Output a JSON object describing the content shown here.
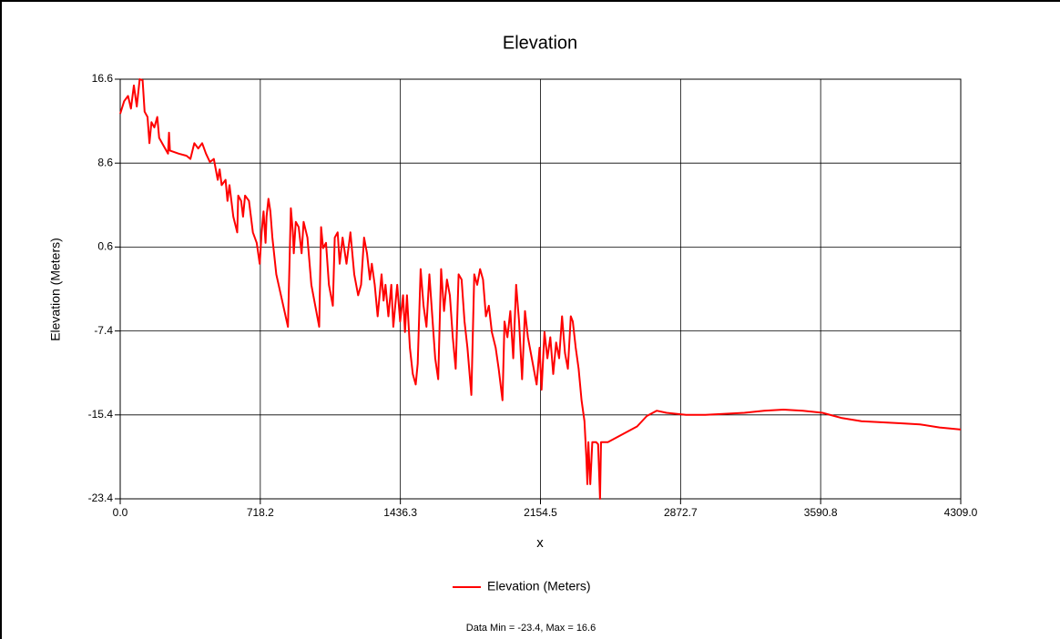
{
  "chart_data": {
    "type": "line",
    "title": "Elevation",
    "x_label": "x",
    "y_label": "Elevation (Meters)",
    "note": "Data Min = -23.4, Max = 16.6",
    "xlim": [
      0,
      4309
    ],
    "ylim": [
      -23.4,
      16.6
    ],
    "xticks": [
      {
        "value": 0,
        "label": "0.0"
      },
      718.2,
      1436.3,
      2154.5,
      2872.7,
      3590.8,
      {
        "value": 4309,
        "label": "4309.0"
      }
    ],
    "yticks": [
      16.6,
      8.6,
      0.6,
      -7.4,
      -15.4,
      -23.4
    ],
    "grid": true,
    "legend": "bottom",
    "x": [
      0,
      20,
      40,
      55,
      70,
      85,
      100,
      115,
      125,
      140,
      150,
      160,
      175,
      190,
      200,
      230,
      245,
      250,
      255,
      300,
      340,
      360,
      380,
      400,
      420,
      440,
      460,
      480,
      500,
      510,
      520,
      540,
      550,
      560,
      580,
      600,
      605,
      620,
      630,
      640,
      660,
      680,
      700,
      715,
      725,
      735,
      745,
      750,
      760,
      770,
      780,
      800,
      830,
      860,
      875,
      885,
      890,
      900,
      915,
      930,
      940,
      960,
      980,
      1000,
      1020,
      1030,
      1040,
      1055,
      1070,
      1090,
      1100,
      1115,
      1125,
      1140,
      1160,
      1180,
      1200,
      1220,
      1235,
      1250,
      1265,
      1280,
      1290,
      1305,
      1320,
      1340,
      1350,
      1360,
      1375,
      1390,
      1400,
      1410,
      1420,
      1435,
      1450,
      1460,
      1470,
      1485,
      1500,
      1515,
      1525,
      1540,
      1555,
      1570,
      1585,
      1600,
      1615,
      1630,
      1645,
      1660,
      1675,
      1690,
      1705,
      1720,
      1735,
      1750,
      1765,
      1780,
      1800,
      1815,
      1830,
      1845,
      1860,
      1875,
      1890,
      1905,
      1925,
      1940,
      1960,
      1970,
      1985,
      2000,
      2015,
      2030,
      2045,
      2060,
      2075,
      2090,
      2105,
      2120,
      2135,
      2150,
      2160,
      2175,
      2190,
      2205,
      2220,
      2235,
      2250,
      2265,
      2280,
      2295,
      2310,
      2320,
      2335,
      2350,
      2365,
      2380,
      2390,
      2395,
      2400,
      2410,
      2420,
      2440,
      2450,
      2460,
      2465,
      2500,
      2550,
      2600,
      2650,
      2700,
      2750,
      2800,
      2850,
      2900,
      3000,
      3100,
      3200,
      3300,
      3400,
      3500,
      3600,
      3700,
      3800,
      3900,
      4000,
      4100,
      4200,
      4309
    ],
    "series": [
      {
        "name": "Elevation (Meters)",
        "color": "#ff0000",
        "values": [
          13.3,
          14.5,
          15.0,
          13.8,
          16.0,
          14.0,
          16.6,
          16.5,
          13.5,
          13.0,
          10.5,
          12.5,
          12.0,
          13.0,
          11.0,
          10.0,
          9.5,
          11.5,
          9.8,
          9.5,
          9.3,
          9.0,
          10.5,
          10.0,
          10.5,
          9.5,
          8.7,
          9.0,
          7.0,
          8.0,
          6.5,
          7.0,
          5.0,
          6.5,
          3.5,
          2.0,
          5.5,
          5.0,
          3.5,
          5.5,
          5.0,
          2.0,
          1.0,
          -1.0,
          2.0,
          4.0,
          1.0,
          3.5,
          5.2,
          4.0,
          1.5,
          -2.0,
          -4.5,
          -7.0,
          4.3,
          2.0,
          0.0,
          3.0,
          2.5,
          0.0,
          3.0,
          1.5,
          -3.0,
          -5.0,
          -7.0,
          2.5,
          0.5,
          1.0,
          -3.0,
          -5.0,
          1.5,
          2.0,
          -1.0,
          1.5,
          -1.0,
          2.0,
          -2.0,
          -4.0,
          -3.0,
          1.5,
          0.0,
          -2.5,
          -1.0,
          -3.0,
          -6.0,
          -2.0,
          -4.5,
          -3.0,
          -6.0,
          -3.0,
          -7.0,
          -5.0,
          -3.0,
          -6.5,
          -4.0,
          -7.5,
          -4.0,
          -9.0,
          -11.5,
          -12.5,
          -10.5,
          -1.5,
          -5.0,
          -7.0,
          -2.0,
          -6.0,
          -10.0,
          -12.0,
          -1.5,
          -5.5,
          -2.5,
          -4.0,
          -8.0,
          -11.0,
          -2.0,
          -2.5,
          -6.5,
          -9.0,
          -13.5,
          -2.0,
          -3.0,
          -1.5,
          -2.5,
          -6.0,
          -5.0,
          -7.5,
          -9.0,
          -11.0,
          -14.0,
          -6.5,
          -8.0,
          -5.5,
          -10.0,
          -3.0,
          -6.5,
          -12.0,
          -5.5,
          -8.0,
          -9.5,
          -11.0,
          -12.5,
          -9.0,
          -13.0,
          -7.5,
          -10.0,
          -8.0,
          -11.5,
          -8.5,
          -10.0,
          -6.0,
          -9.5,
          -11.0,
          -6.0,
          -6.5,
          -9.0,
          -11.0,
          -14.0,
          -16.0,
          -19.5,
          -22.0,
          -18.0,
          -22.0,
          -18.0,
          -18.0,
          -18.2,
          -23.4,
          -18.0,
          -18.0,
          -17.5,
          -17.0,
          -16.5,
          -15.5,
          -15.0,
          -15.2,
          -15.3,
          -15.4,
          -15.4,
          -15.3,
          -15.2,
          -15.0,
          -14.9,
          -15.0,
          -15.2,
          -15.7,
          -16.0,
          -16.1,
          -16.2,
          -16.3,
          -16.6,
          -16.8
        ]
      }
    ]
  }
}
